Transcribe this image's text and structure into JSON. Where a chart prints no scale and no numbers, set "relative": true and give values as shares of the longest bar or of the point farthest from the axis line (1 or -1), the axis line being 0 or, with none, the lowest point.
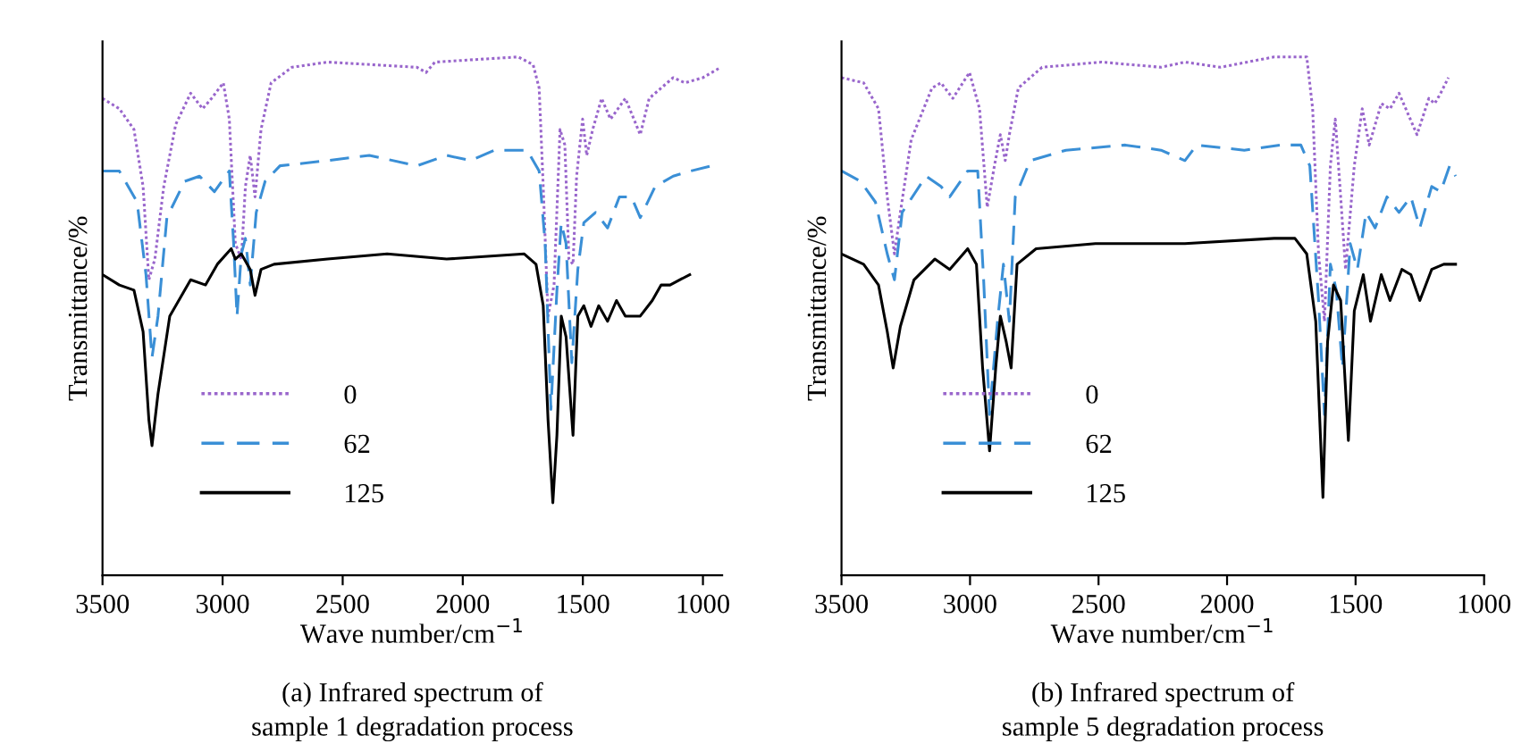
{
  "chart_data": [
    {
      "type": "line",
      "title": "(a) Infrared spectrum of\nsample 1 degradation process",
      "xlabel": "Wave number/cm$^{−1}$",
      "ylabel": "Transmittance/%",
      "relative": true,
      "legend": "bottom left",
      "grid": false,
      "xlim": [
        3500,
        920
      ],
      "xticks": [
        3500,
        3000,
        2500,
        2000,
        1500,
        1000
      ],
      "series": [
        {
          "name": "0",
          "color": "#9966cc",
          "line_style": "dotted",
          "x": [
            3500,
            3430,
            3369,
            3331,
            3307,
            3282,
            3245,
            3195,
            3133,
            3083,
            3046,
            2997,
            2972,
            2947,
            2922,
            2905,
            2885,
            2865,
            2840,
            2798,
            2711,
            2563,
            2191,
            2153,
            2116,
            1769,
            1707,
            1682,
            1665,
            1645,
            1620,
            1595,
            1575,
            1558,
            1541,
            1526,
            1501,
            1484,
            1459,
            1422,
            1385,
            1323,
            1261,
            1224,
            1174,
            1124,
            1075,
            1000,
            926
          ],
          "values": [
            0.92,
            0.9,
            0.86,
            0.75,
            0.57,
            0.61,
            0.75,
            0.87,
            0.93,
            0.9,
            0.92,
            0.95,
            0.88,
            0.64,
            0.61,
            0.75,
            0.81,
            0.73,
            0.86,
            0.95,
            0.98,
            0.99,
            0.98,
            0.97,
            0.99,
            1.0,
            0.985,
            0.94,
            0.75,
            0.5,
            0.56,
            0.86,
            0.83,
            0.61,
            0.6,
            0.77,
            0.88,
            0.81,
            0.86,
            0.92,
            0.88,
            0.92,
            0.85,
            0.92,
            0.94,
            0.96,
            0.95,
            0.96,
            0.98
          ]
        },
        {
          "name": "62",
          "color": "#3a8fd6",
          "line_style": "dashed",
          "x": [
            3500,
            3430,
            3356,
            3319,
            3294,
            3269,
            3232,
            3158,
            3096,
            3034,
            2972,
            2954,
            2940,
            2922,
            2905,
            2885,
            2860,
            2823,
            2761,
            2563,
            2389,
            2191,
            2067,
            1967,
            1868,
            1732,
            1682,
            1657,
            1633,
            1608,
            1590,
            1570,
            1546,
            1521,
            1496,
            1447,
            1397,
            1348,
            1298,
            1261,
            1199,
            1124,
            1050,
            963
          ],
          "values": [
            0.78,
            0.78,
            0.72,
            0.58,
            0.42,
            0.5,
            0.69,
            0.76,
            0.77,
            0.74,
            0.78,
            0.64,
            0.5,
            0.62,
            0.65,
            0.56,
            0.7,
            0.76,
            0.79,
            0.8,
            0.81,
            0.79,
            0.81,
            0.8,
            0.82,
            0.82,
            0.78,
            0.64,
            0.32,
            0.55,
            0.68,
            0.64,
            0.41,
            0.59,
            0.68,
            0.7,
            0.67,
            0.73,
            0.73,
            0.69,
            0.75,
            0.77,
            0.78,
            0.79
          ]
        },
        {
          "name": "125",
          "color": "#000000",
          "line_style": "solid",
          "x": [
            3500,
            3430,
            3369,
            3331,
            3307,
            3294,
            3269,
            3220,
            3133,
            3071,
            3022,
            2964,
            2947,
            2922,
            2885,
            2865,
            2840,
            2786,
            2563,
            2315,
            2067,
            1744,
            1695,
            1665,
            1645,
            1625,
            1608,
            1590,
            1570,
            1541,
            1521,
            1496,
            1466,
            1434,
            1397,
            1360,
            1323,
            1261,
            1211,
            1174,
            1137,
            1055
          ],
          "values": [
            0.58,
            0.56,
            0.55,
            0.47,
            0.3,
            0.25,
            0.35,
            0.5,
            0.57,
            0.56,
            0.6,
            0.63,
            0.61,
            0.62,
            0.59,
            0.54,
            0.59,
            0.6,
            0.61,
            0.62,
            0.61,
            0.62,
            0.6,
            0.52,
            0.3,
            0.14,
            0.27,
            0.5,
            0.46,
            0.27,
            0.5,
            0.52,
            0.48,
            0.52,
            0.49,
            0.53,
            0.5,
            0.5,
            0.53,
            0.56,
            0.56,
            0.58
          ]
        }
      ]
    },
    {
      "type": "line",
      "title": "(b) Infrared spectrum of\nsample 5 degradation process",
      "xlabel": "Wave number/cm$^{−1}$",
      "ylabel": "Transmittance/%",
      "relative": true,
      "legend": "bottom left",
      "grid": false,
      "xlim": [
        3500,
        1000
      ],
      "xticks": [
        3500,
        3000,
        2500,
        2000,
        1500,
        1000
      ],
      "series": [
        {
          "name": "0",
          "color": "#9966cc",
          "line_style": "dotted",
          "x": [
            3500,
            3414,
            3356,
            3322,
            3294,
            3271,
            3229,
            3148,
            3113,
            3067,
            3002,
            2963,
            2933,
            2905,
            2882,
            2863,
            2847,
            2812,
            2720,
            2488,
            2257,
            2164,
            2025,
            1817,
            1690,
            1667,
            1644,
            1621,
            1598,
            1579,
            1558,
            1539,
            1505,
            1474,
            1447,
            1400,
            1366,
            1331,
            1261,
            1215,
            1192,
            1169,
            1139
          ],
          "values": [
            0.96,
            0.95,
            0.9,
            0.73,
            0.62,
            0.7,
            0.84,
            0.94,
            0.95,
            0.92,
            0.97,
            0.9,
            0.71,
            0.79,
            0.85,
            0.8,
            0.85,
            0.94,
            0.98,
            0.99,
            0.98,
            0.99,
            0.98,
            1.0,
            1.0,
            0.9,
            0.62,
            0.49,
            0.79,
            0.88,
            0.73,
            0.59,
            0.79,
            0.9,
            0.83,
            0.91,
            0.9,
            0.93,
            0.85,
            0.92,
            0.91,
            0.93,
            0.96
          ]
        },
        {
          "name": "62",
          "color": "#3a8fd6",
          "line_style": "dashed",
          "x": [
            3500,
            3426,
            3368,
            3322,
            3294,
            3264,
            3171,
            3113,
            3079,
            3009,
            2970,
            2947,
            2924,
            2893,
            2870,
            2847,
            2824,
            2766,
            2627,
            2396,
            2257,
            2164,
            2118,
            1933,
            1794,
            1713,
            1678,
            1644,
            1621,
            1598,
            1575,
            1551,
            1521,
            1493,
            1459,
            1424,
            1378,
            1331,
            1285,
            1250,
            1204,
            1169,
            1134,
            1111
          ],
          "values": [
            0.78,
            0.76,
            0.72,
            0.62,
            0.57,
            0.7,
            0.77,
            0.75,
            0.73,
            0.78,
            0.78,
            0.57,
            0.31,
            0.49,
            0.6,
            0.49,
            0.73,
            0.8,
            0.82,
            0.83,
            0.82,
            0.8,
            0.83,
            0.82,
            0.83,
            0.83,
            0.79,
            0.53,
            0.31,
            0.6,
            0.55,
            0.4,
            0.64,
            0.59,
            0.7,
            0.67,
            0.73,
            0.7,
            0.73,
            0.67,
            0.75,
            0.74,
            0.79,
            0.77
          ]
        },
        {
          "name": "125",
          "color": "#000000",
          "line_style": "solid",
          "x": [
            3500,
            3414,
            3356,
            3322,
            3299,
            3271,
            3218,
            3137,
            3079,
            3009,
            2975,
            2951,
            2924,
            2900,
            2882,
            2859,
            2840,
            2817,
            2743,
            2512,
            2164,
            1817,
            1736,
            1690,
            1655,
            1627,
            1609,
            1586,
            1558,
            1528,
            1505,
            1470,
            1442,
            1400,
            1366,
            1320,
            1285,
            1250,
            1204,
            1157,
            1111
          ],
          "values": [
            0.62,
            0.6,
            0.56,
            0.47,
            0.4,
            0.48,
            0.57,
            0.61,
            0.59,
            0.63,
            0.6,
            0.4,
            0.24,
            0.4,
            0.5,
            0.45,
            0.4,
            0.6,
            0.63,
            0.64,
            0.64,
            0.65,
            0.65,
            0.62,
            0.49,
            0.15,
            0.45,
            0.56,
            0.53,
            0.26,
            0.51,
            0.58,
            0.49,
            0.58,
            0.53,
            0.59,
            0.58,
            0.53,
            0.59,
            0.6,
            0.6
          ]
        }
      ]
    }
  ]
}
